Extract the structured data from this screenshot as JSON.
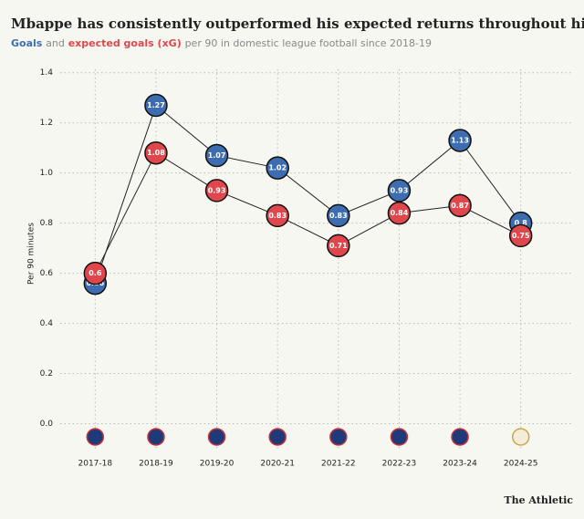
{
  "chart_data": {
    "type": "line",
    "title": "Mbappe has consistently outperformed his expected returns throughout his career",
    "subtitle_parts": [
      "Goals",
      "and",
      "expected goals (xG)",
      "per 90 in domestic league football since 2018-19"
    ],
    "y_label": "Per 90 minutes",
    "source": "The Athletic",
    "categories": [
      "2017-18",
      "2018-19",
      "2019-20",
      "2020-21",
      "2021-22",
      "2022-23",
      "2023-24",
      "2024-25"
    ],
    "series": [
      {
        "name": "Goals",
        "color": "#3d6db0",
        "values": [
          0.56,
          1.27,
          1.07,
          1.02,
          0.83,
          0.93,
          1.13,
          0.8
        ]
      },
      {
        "name": "expected goals (xG)",
        "color": "#e0474c",
        "values": [
          0.6,
          1.08,
          0.93,
          0.83,
          0.71,
          0.84,
          0.87,
          0.75
        ]
      }
    ],
    "ylim": [
      -0.1,
      1.45
    ],
    "yticks": [
      {
        "value": 0,
        "label": "0.0"
      },
      0.2,
      0.4,
      0.6,
      0.8,
      {
        "value": 1,
        "label": "1.0"
      },
      1.2,
      1.4
    ],
    "grid": true
  }
}
